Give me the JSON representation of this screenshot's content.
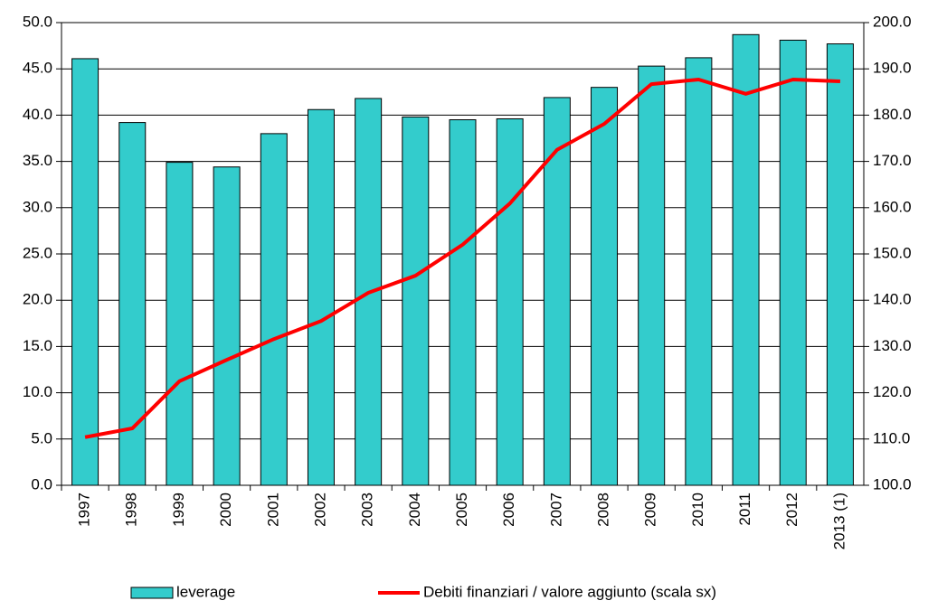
{
  "chart_data": {
    "type": "bar_line",
    "categories": [
      "1997",
      "1998",
      "1999",
      "2000",
      "2001",
      "2002",
      "2003",
      "2004",
      "2005",
      "2006",
      "2007",
      "2008",
      "2009",
      "2010",
      "2011",
      "2012",
      "2013 (1)"
    ],
    "series": [
      {
        "name": "leverage",
        "type": "bar",
        "color": "#33cccc",
        "axis": "y",
        "values": [
          46.1,
          39.2,
          34.9,
          34.4,
          38.0,
          40.6,
          41.8,
          39.8,
          39.5,
          39.6,
          41.9,
          43.0,
          45.3,
          46.2,
          48.7,
          48.1,
          47.7
        ]
      },
      {
        "name": "Debiti finanziari / valore aggiunto (scala sx)",
        "type": "line",
        "color": "#ff0000",
        "axis": "y2",
        "values": [
          110.4,
          112.3,
          122.5,
          127.1,
          131.6,
          135.5,
          141.6,
          145.3,
          152.0,
          160.9,
          172.5,
          178.1,
          186.7,
          187.7,
          184.6,
          187.7,
          187.3
        ]
      }
    ],
    "ylim": [
      0,
      50
    ],
    "yticks": [
      {
        "value": 0,
        "label": "0.0"
      },
      {
        "value": 5,
        "label": "5.0"
      },
      {
        "value": 10,
        "label": "10.0"
      },
      {
        "value": 15,
        "label": "15.0"
      },
      {
        "value": 20,
        "label": "20.0"
      },
      {
        "value": 25,
        "label": "25.0"
      },
      {
        "value": 30,
        "label": "30.0"
      },
      {
        "value": 35,
        "label": "35.0"
      },
      {
        "value": 40,
        "label": "40.0"
      },
      {
        "value": 45,
        "label": "45.0"
      },
      {
        "value": 50,
        "label": "50.0"
      }
    ],
    "y2lim": [
      100,
      200
    ],
    "y2ticks": [
      {
        "value": 100,
        "label": "100.0"
      },
      {
        "value": 110,
        "label": "110.0"
      },
      {
        "value": 120,
        "label": "120.0"
      },
      {
        "value": 130,
        "label": "130.0"
      },
      {
        "value": 140,
        "label": "140.0"
      },
      {
        "value": 150,
        "label": "150.0"
      },
      {
        "value": 160,
        "label": "160.0"
      },
      {
        "value": 170,
        "label": "170.0"
      },
      {
        "value": 180,
        "label": "180.0"
      },
      {
        "value": 190,
        "label": "190.0"
      },
      {
        "value": 200,
        "label": "200.0"
      }
    ],
    "grid": true
  }
}
